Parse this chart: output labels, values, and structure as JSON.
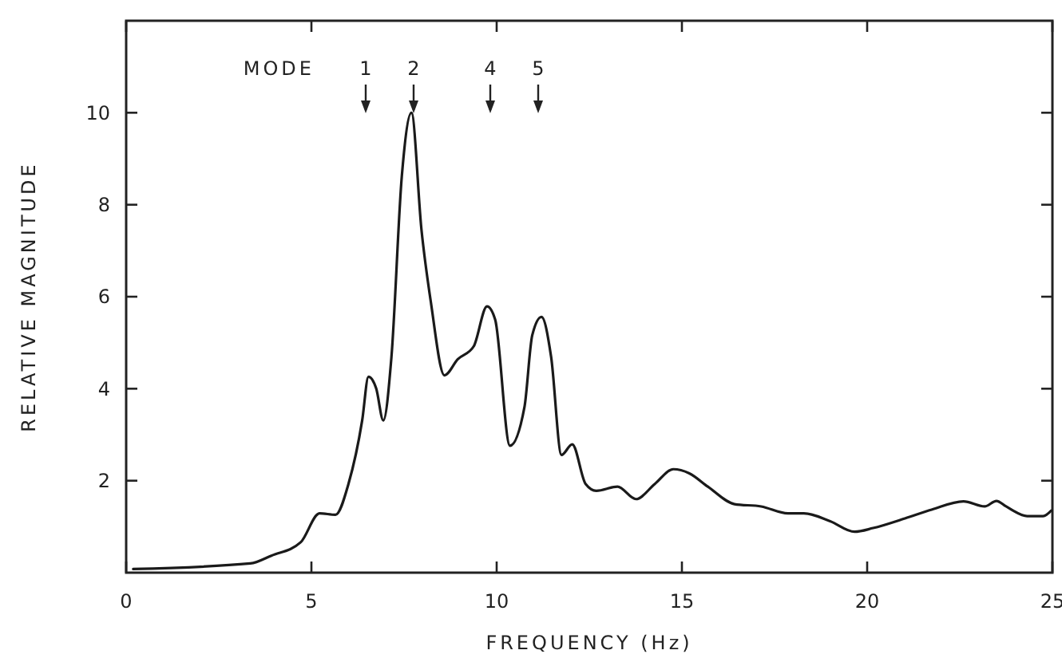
{
  "chart_data": {
    "type": "line",
    "xlabel": "FREQUENCY (Hz)",
    "ylabel": "RELATIVE MAGNITUDE",
    "xlim": [
      0,
      25
    ],
    "xticks": [
      0,
      5,
      10,
      15,
      20,
      25
    ],
    "ylim": [
      0,
      12
    ],
    "yticks": [
      2,
      4,
      6,
      8,
      10
    ],
    "grid": false,
    "marker": "none",
    "line_style": "solid",
    "annotations": [
      "MODE",
      "1",
      "2",
      "4",
      "5"
    ],
    "series": [
      {
        "color": "#1a1a1a",
        "x": [
          0.19,
          3.35,
          3.92,
          4.71,
          5.22,
          5.65,
          6.0,
          6.37,
          6.54,
          6.75,
          6.94,
          7.16,
          7.44,
          7.7,
          7.97,
          8.23,
          8.59,
          8.95,
          9.38,
          9.74,
          9.96,
          10.36,
          10.75,
          10.96,
          11.21,
          11.47,
          11.75,
          12.04,
          12.4,
          12.69,
          13.26,
          13.76,
          14.27,
          14.77,
          15.2,
          15.7,
          16.42,
          17.14,
          17.86,
          18.29,
          19.0,
          19.66,
          20.16,
          21.02,
          21.74,
          22.6,
          23.17,
          23.49,
          23.75,
          24.32,
          24.75,
          24.97
        ],
        "values": [
          0.08,
          0.2,
          0.37,
          0.66,
          1.29,
          1.26,
          1.93,
          3.31,
          4.26,
          4.0,
          3.31,
          4.69,
          8.62,
          10.0,
          7.46,
          5.85,
          4.29,
          4.64,
          4.92,
          5.79,
          5.5,
          2.76,
          3.6,
          5.16,
          5.56,
          4.69,
          2.56,
          2.79,
          1.93,
          1.78,
          1.87,
          1.6,
          1.93,
          2.25,
          2.16,
          1.87,
          1.49,
          1.44,
          1.29,
          1.29,
          1.12,
          0.89,
          0.97,
          1.18,
          1.37,
          1.55,
          1.44,
          1.56,
          1.44,
          1.23,
          1.23,
          1.35
        ]
      }
    ]
  }
}
